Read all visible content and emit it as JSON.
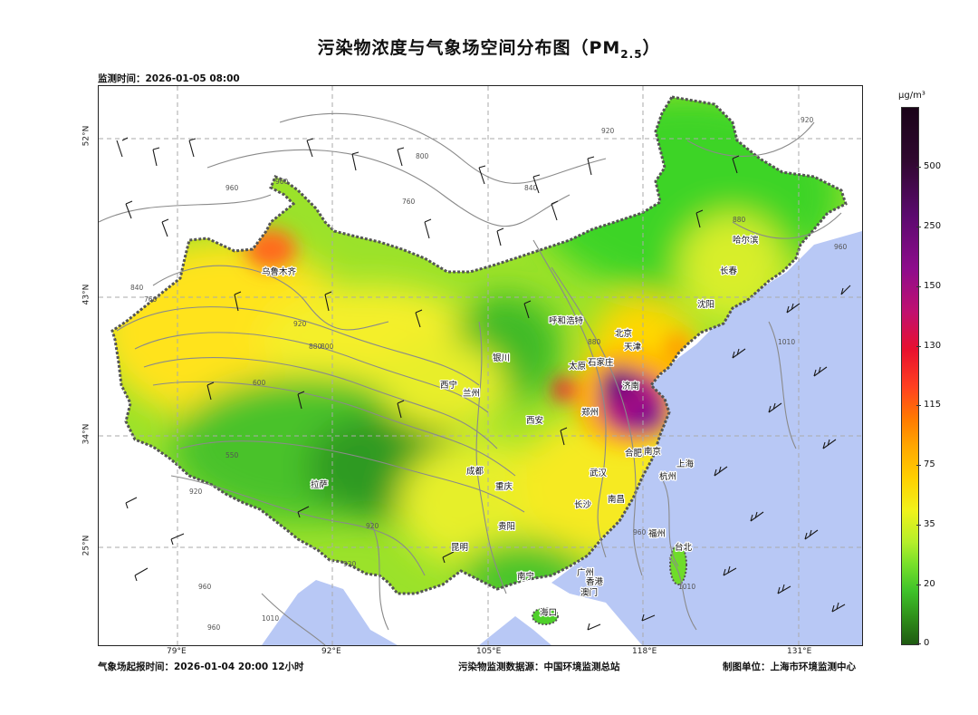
{
  "title": {
    "main": "污染物浓度与气象场空间分布图（PM",
    "sub": "2.5",
    "close": "）"
  },
  "monitor_time": "监测时间：2026-01-05 08:00",
  "footer": {
    "forecast_start": "气象场起报时间：2026-01-04 20:00 12小时",
    "data_source": "污染物监测数据源：中国环境监测总站",
    "producer": "制图单位：上海市环境监测中心"
  },
  "axes": {
    "lon_ticks": [
      "79°E",
      "92°E",
      "105°E",
      "118°E",
      "131°E"
    ],
    "lat_ticks": [
      "52°N",
      "43°N",
      "34°N",
      "25°N"
    ]
  },
  "colorbar": {
    "unit": "μg/m³",
    "ticks": [
      "500",
      "250",
      "150",
      "130",
      "115",
      "75",
      "35",
      "20",
      "0"
    ]
  },
  "cities": [
    "乌鲁木齐",
    "哈尔滨",
    "长春",
    "沈阳",
    "呼和浩特",
    "北京",
    "天津",
    "银川",
    "太原",
    "石家庄",
    "西宁",
    "兰州",
    "济南",
    "西安",
    "郑州",
    "合肥",
    "南京",
    "上海",
    "成都",
    "武汉",
    "杭州",
    "拉萨",
    "重庆",
    "长沙",
    "南昌",
    "贵阳",
    "福州",
    "昆明",
    "台北",
    "南宁",
    "广州",
    "香港",
    "澳门",
    "海口"
  ],
  "contour_labels": [
    "880",
    "920",
    "920",
    "960",
    "800",
    "840",
    "760",
    "960",
    "840",
    "760",
    "920",
    "880",
    "800",
    "600",
    "550",
    "920",
    "920",
    "880",
    "960",
    "1010",
    "1010",
    "1010",
    "960",
    "960",
    "920",
    "960"
  ],
  "colors": {
    "ocean": "#b8c8f5",
    "clean": "#3fc32a",
    "moderate": "#f1f21a",
    "heavy": "#8e0c8c"
  }
}
